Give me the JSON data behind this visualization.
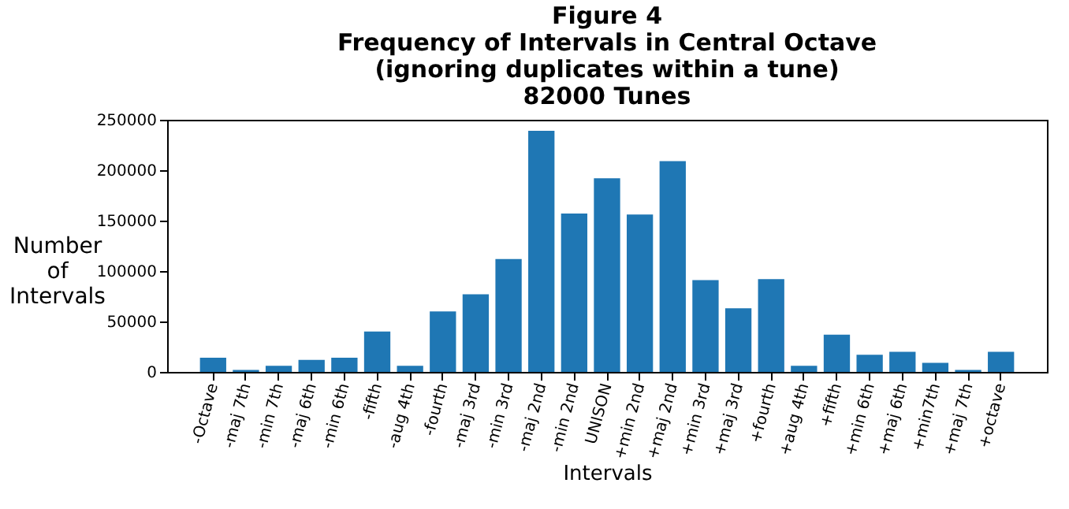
{
  "chart_data": {
    "type": "bar",
    "title": "Figure 4\nFrequency of Intervals in Central Octave\n(ignoring duplicates within a tune)\n82000 Tunes",
    "xlabel": "Intervals",
    "ylabel": "Number\nof\nIntervals",
    "categories": [
      "-Octave",
      "-maj 7th",
      "-min 7th",
      "-maj 6th",
      "-min 6th",
      "-fifth",
      "-aug 4th",
      "-fourth",
      "-maj 3rd",
      "-min 3rd",
      "-maj 2nd",
      "-min 2nd",
      "UNISON",
      "+min 2nd",
      "+maj 2nd",
      "+min 3rd",
      "+maj 3rd",
      "+fourth",
      "+aug 4th",
      "+fifth",
      "+min 6th",
      "+maj 6th",
      "+min7th",
      "+maj 7th",
      "+octave"
    ],
    "values": [
      14000,
      2000,
      6000,
      12000,
      14000,
      40000,
      6000,
      60000,
      77000,
      112000,
      239000,
      157000,
      192000,
      156000,
      209000,
      91000,
      63000,
      92000,
      6000,
      37000,
      17000,
      20000,
      9000,
      2000,
      20000
    ],
    "color": "#1f77b4",
    "ylim": [
      0,
      250000
    ],
    "yticks": [
      0,
      50000,
      100000,
      150000,
      200000,
      250000
    ],
    "grid": false
  }
}
